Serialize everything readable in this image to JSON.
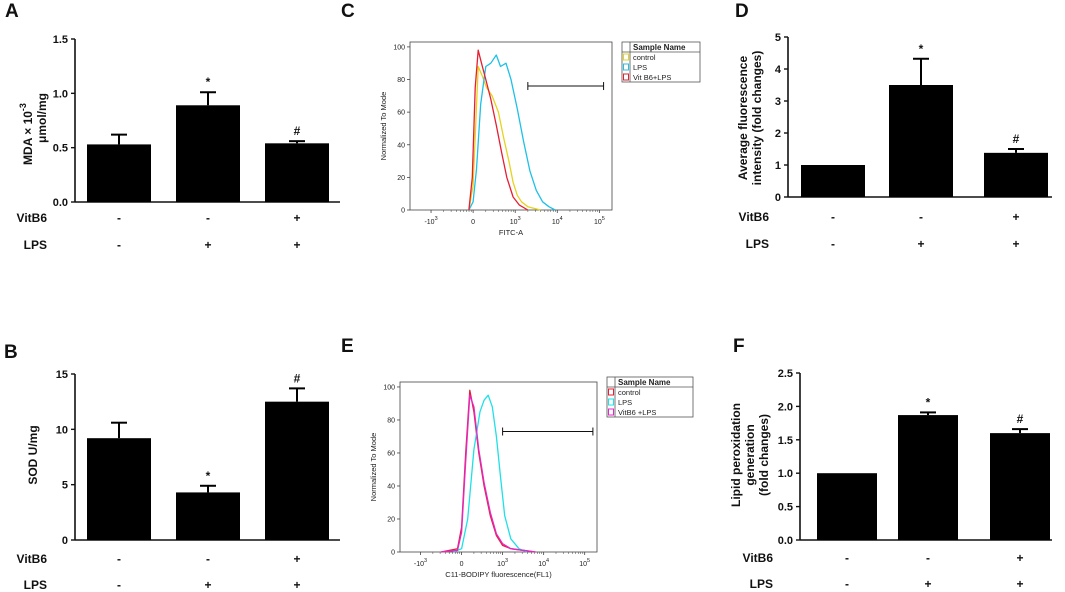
{
  "chart_data": [
    {
      "panel": "A",
      "type": "bar",
      "ylabel_line1": "MDA × 10",
      "ylabel_sup": "-3",
      "ylabel_line2": "μmol/mg",
      "ylim": [
        0,
        1.5
      ],
      "yticks": [
        "0.0",
        "0.5",
        "1.0",
        "1.5"
      ],
      "ytick_values": [
        0,
        0.5,
        1.0,
        1.5
      ],
      "values": [
        0.53,
        0.89,
        0.54
      ],
      "errors": [
        0.09,
        0.12,
        0.02
      ],
      "marks": [
        "",
        "*",
        "#"
      ],
      "conditions": [
        {
          "name": "VitB6",
          "signs": [
            "-",
            "-",
            "+"
          ]
        },
        {
          "name": "LPS",
          "signs": [
            "-",
            "+",
            "+"
          ]
        }
      ]
    },
    {
      "panel": "B",
      "type": "bar",
      "ylabel_line1": "SOD U/mg",
      "ylim": [
        0,
        15
      ],
      "yticks": [
        "0",
        "5",
        "10",
        "15"
      ],
      "ytick_values": [
        0,
        5,
        10,
        15
      ],
      "values": [
        9.2,
        4.3,
        12.5
      ],
      "errors": [
        1.4,
        0.6,
        1.2
      ],
      "marks": [
        "",
        "*",
        "#"
      ],
      "conditions": [
        {
          "name": "VitB6",
          "signs": [
            "-",
            "-",
            "+"
          ]
        },
        {
          "name": "LPS",
          "signs": [
            "-",
            "+",
            "+"
          ]
        }
      ]
    },
    {
      "panel": "C",
      "type": "line",
      "ylabel": "Normalized To Mode",
      "xlabel": "FITC-A",
      "yticks": [
        "0",
        "20",
        "40",
        "60",
        "80",
        "100"
      ],
      "ytick_values": [
        0,
        20,
        40,
        60,
        80,
        100
      ],
      "xticks": [
        {
          "base": "-10",
          "exp": "3",
          "v": -1
        },
        {
          "base": "0",
          "exp": "",
          "v": 0
        },
        {
          "base": "10",
          "exp": "3",
          "v": 1
        },
        {
          "base": "10",
          "exp": "4",
          "v": 2
        },
        {
          "base": "10",
          "exp": "5",
          "v": 3
        }
      ],
      "xlim": [
        -1.5,
        3.3
      ],
      "ylim": [
        0,
        103
      ],
      "legend_title": "Sample Name",
      "series": [
        {
          "name": "control",
          "color": "#e6d21e",
          "x": [
            -0.1,
            0.0,
            0.05,
            0.12,
            0.22,
            0.32,
            0.45,
            0.6,
            0.72,
            0.85,
            0.95,
            1.05,
            1.15,
            1.3,
            1.45,
            1.6
          ],
          "y": [
            0,
            15,
            45,
            88,
            82,
            75,
            70,
            60,
            45,
            30,
            17,
            9,
            5,
            2,
            1,
            0
          ]
        },
        {
          "name": "LPS",
          "color": "#1ec0e6",
          "x": [
            -0.1,
            0.0,
            0.08,
            0.18,
            0.3,
            0.42,
            0.55,
            0.65,
            0.78,
            0.9,
            1.05,
            1.2,
            1.35,
            1.5,
            1.65,
            1.8,
            1.95
          ],
          "y": [
            0,
            5,
            25,
            65,
            88,
            90,
            95,
            88,
            90,
            80,
            62,
            42,
            24,
            12,
            5,
            2,
            0
          ]
        },
        {
          "name": "Vit B6+LPS",
          "color": "#e61e32",
          "x": [
            -0.1,
            -0.02,
            0.05,
            0.12,
            0.2,
            0.3,
            0.42,
            0.55,
            0.68,
            0.8,
            0.95,
            1.1,
            1.3
          ],
          "y": [
            0,
            20,
            75,
            98,
            90,
            80,
            68,
            52,
            35,
            20,
            8,
            3,
            0
          ]
        }
      ],
      "gate": [
        1.3,
        3.1
      ],
      "gate_y": 76
    },
    {
      "panel": "D",
      "type": "bar",
      "ylabel_line1": "Average fluorescence",
      "ylabel_line2": "intensity (fold changes)",
      "ylim": [
        0,
        5
      ],
      "yticks": [
        "0",
        "1",
        "2",
        "3",
        "4",
        "5"
      ],
      "ytick_values": [
        0,
        1,
        2,
        3,
        4,
        5
      ],
      "values": [
        1.0,
        3.5,
        1.38
      ],
      "errors": [
        0.0,
        0.82,
        0.12
      ],
      "marks": [
        "",
        "*",
        "#"
      ],
      "conditions": [
        {
          "name": "VitB6",
          "signs": [
            "-",
            "-",
            "+"
          ]
        },
        {
          "name": "LPS",
          "signs": [
            "-",
            "+",
            "+"
          ]
        }
      ]
    },
    {
      "panel": "E",
      "type": "line",
      "ylabel": "Normalized To Mode",
      "xlabel": "C11-BODIPY fluorescence(FL1)",
      "yticks": [
        "0",
        "20",
        "40",
        "60",
        "80",
        "100"
      ],
      "ytick_values": [
        0,
        20,
        40,
        60,
        80,
        100
      ],
      "xticks": [
        {
          "base": "-10",
          "exp": "3",
          "v": -1
        },
        {
          "base": "0",
          "exp": "",
          "v": 0
        },
        {
          "base": "10",
          "exp": "3",
          "v": 1
        },
        {
          "base": "10",
          "exp": "4",
          "v": 2
        },
        {
          "base": "10",
          "exp": "5",
          "v": 3
        }
      ],
      "xlim": [
        -1.5,
        3.3
      ],
      "ylim": [
        0,
        103
      ],
      "legend_title": "Sample Name",
      "series": [
        {
          "name": "control",
          "color": "#e61e32",
          "x": [
            -0.5,
            -0.1,
            0.0,
            0.1,
            0.2,
            0.3,
            0.42,
            0.55,
            0.7,
            0.85,
            1.0,
            1.2,
            1.5,
            1.8
          ],
          "y": [
            0,
            2,
            15,
            60,
            98,
            85,
            60,
            40,
            22,
            10,
            4,
            2,
            1,
            0
          ]
        },
        {
          "name": "LPS",
          "color": "#1ee0e6",
          "x": [
            -0.2,
            0.0,
            0.15,
            0.3,
            0.45,
            0.55,
            0.65,
            0.75,
            0.85,
            0.95,
            1.05,
            1.2,
            1.4,
            1.6
          ],
          "y": [
            0,
            2,
            20,
            62,
            85,
            92,
            95,
            88,
            70,
            45,
            22,
            8,
            2,
            0
          ]
        },
        {
          "name": "VitB6 +LPS",
          "color": "#e028c8",
          "x": [
            -0.5,
            -0.1,
            0.0,
            0.1,
            0.2,
            0.3,
            0.42,
            0.55,
            0.7,
            0.85,
            1.0,
            1.2,
            1.5,
            1.8
          ],
          "y": [
            0,
            1,
            12,
            55,
            95,
            88,
            62,
            42,
            24,
            11,
            5,
            2,
            1,
            0
          ]
        }
      ],
      "gate": [
        1.0,
        3.2
      ],
      "gate_y": 73
    },
    {
      "panel": "F",
      "type": "bar",
      "ylabel_line1": "Lipid peroxidation",
      "ylabel_line2": "generation",
      "ylabel_line3": "(fold changes)",
      "ylim": [
        0,
        2.5
      ],
      "yticks": [
        "0.0",
        "0.5",
        "1.0",
        "1.5",
        "2.0",
        "2.5"
      ],
      "ytick_values": [
        0,
        0.5,
        1.0,
        1.5,
        2.0,
        2.5
      ],
      "values": [
        1.0,
        1.87,
        1.6
      ],
      "errors": [
        0.0,
        0.04,
        0.06
      ],
      "marks": [
        "",
        "*",
        "#"
      ],
      "conditions": [
        {
          "name": "VitB6",
          "signs": [
            "-",
            "-",
            "+"
          ]
        },
        {
          "name": "LPS",
          "signs": [
            "-",
            "+",
            "+"
          ]
        }
      ]
    }
  ]
}
